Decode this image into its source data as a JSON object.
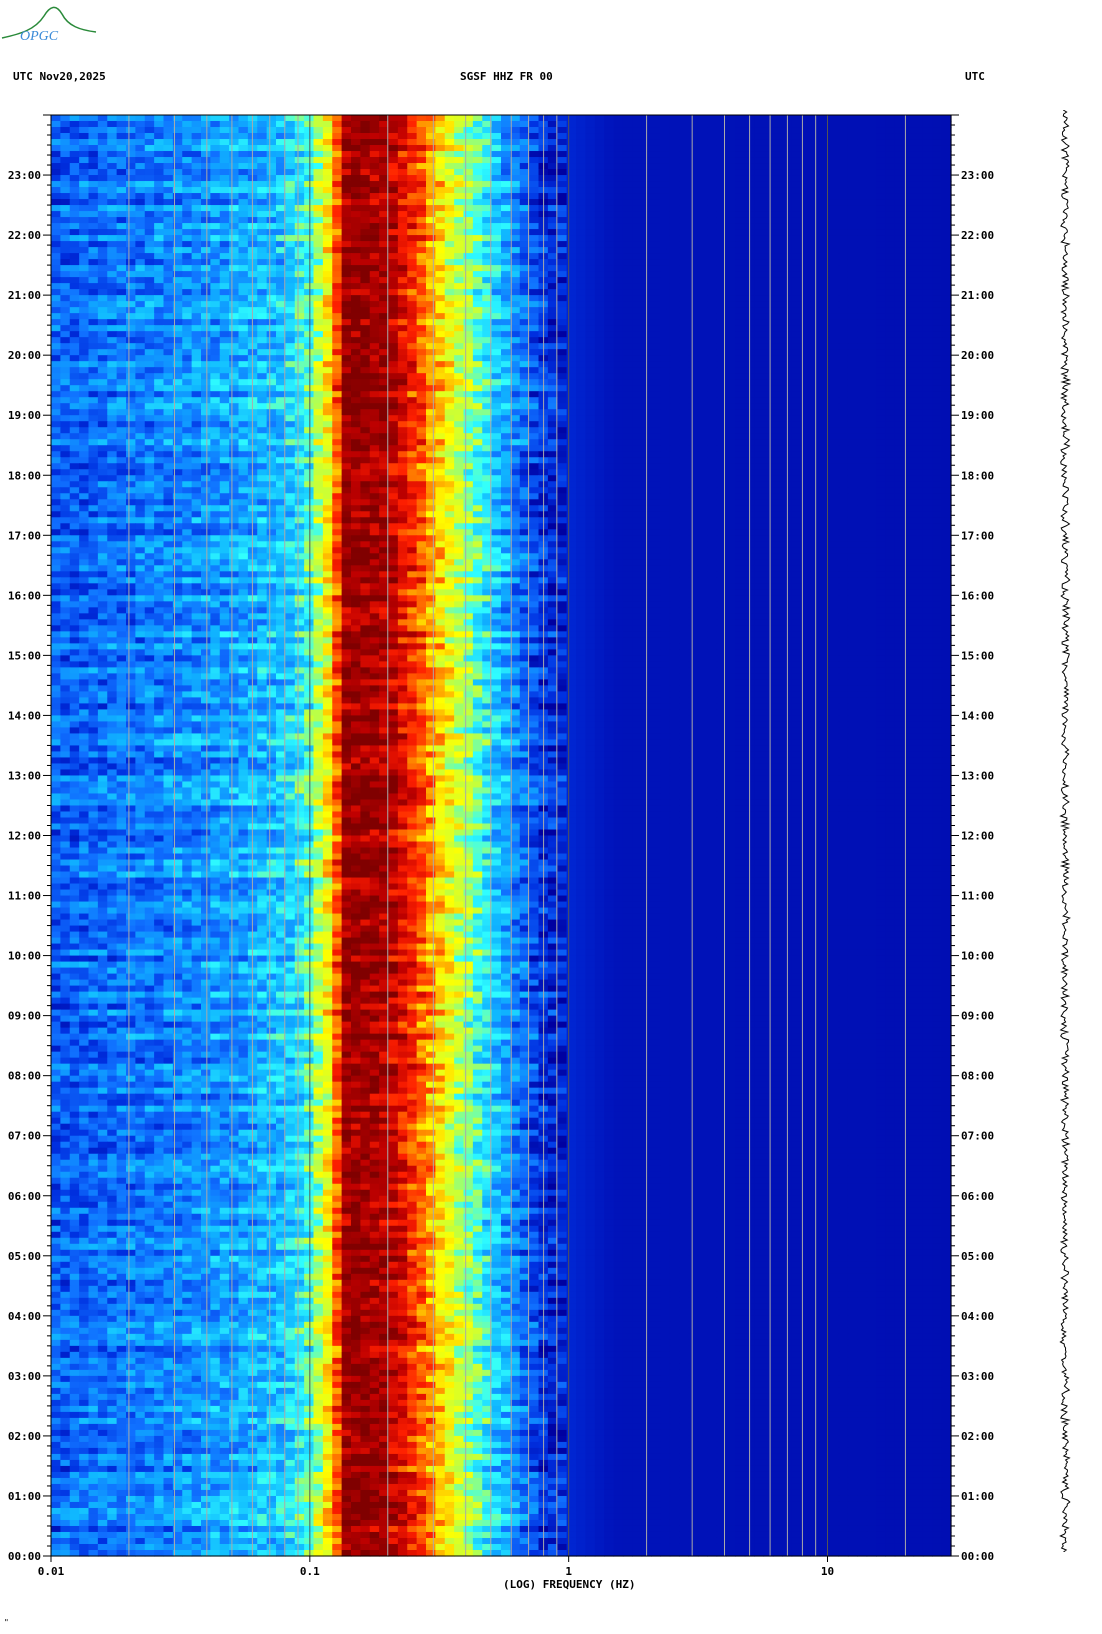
{
  "header": {
    "left": "UTC  Nov20,2025",
    "center": "SGSF HHZ FR 00",
    "right": "UTC"
  },
  "logo": {
    "text": "OPGC",
    "color": "#2a8a3a"
  },
  "corner_mark": "\"",
  "colors": {
    "background": "#0000a8",
    "low_noise": "#1a3ff0",
    "ramp": [
      "#0000a0",
      "#0030e0",
      "#1070ff",
      "#10b8ff",
      "#30ffff",
      "#c0ff40",
      "#ffff00",
      "#ff9000",
      "#ff2000",
      "#c00000",
      "#800000"
    ],
    "grid": "#aaaaaa"
  },
  "chart_data": {
    "type": "heatmap",
    "title": "SGSF HHZ FR 00",
    "date": "Nov20,2025",
    "timezone": "UTC",
    "xlabel": "(LOG) FREQUENCY (HZ)",
    "x_scale": "log",
    "xlim": [
      0.01,
      30
    ],
    "x_ticks": [
      {
        "value": 0.01,
        "label": "0.01"
      },
      {
        "value": 0.1,
        "label": "0.1"
      },
      {
        "value": 1,
        "label": "1"
      },
      {
        "value": 10,
        "label": "10"
      }
    ],
    "y_unit": "hours UTC",
    "ylim": [
      0,
      24
    ],
    "y_ticks": [
      {
        "value": 0,
        "label": "00:00"
      },
      {
        "value": 1,
        "label": "01:00"
      },
      {
        "value": 2,
        "label": "02:00"
      },
      {
        "value": 3,
        "label": "03:00"
      },
      {
        "value": 4,
        "label": "04:00"
      },
      {
        "value": 5,
        "label": "05:00"
      },
      {
        "value": 6,
        "label": "06:00"
      },
      {
        "value": 7,
        "label": "07:00"
      },
      {
        "value": 8,
        "label": "08:00"
      },
      {
        "value": 9,
        "label": "09:00"
      },
      {
        "value": 10,
        "label": "10:00"
      },
      {
        "value": 11,
        "label": "11:00"
      },
      {
        "value": 12,
        "label": "12:00"
      },
      {
        "value": 13,
        "label": "13:00"
      },
      {
        "value": 14,
        "label": "14:00"
      },
      {
        "value": 15,
        "label": "15:00"
      },
      {
        "value": 16,
        "label": "16:00"
      },
      {
        "value": 17,
        "label": "17:00"
      },
      {
        "value": 18,
        "label": "18:00"
      },
      {
        "value": 19,
        "label": "19:00"
      },
      {
        "value": 20,
        "label": "20:00"
      },
      {
        "value": 21,
        "label": "21:00"
      },
      {
        "value": 22,
        "label": "22:00"
      },
      {
        "value": 23,
        "label": "23:00"
      }
    ],
    "grid": true,
    "spectral_profile": [
      {
        "freq": 0.01,
        "level": 0.17
      },
      {
        "freq": 0.025,
        "level": 0.22
      },
      {
        "freq": 0.05,
        "level": 0.27
      },
      {
        "freq": 0.08,
        "level": 0.32
      },
      {
        "freq": 0.1,
        "level": 0.42
      },
      {
        "freq": 0.12,
        "level": 0.62
      },
      {
        "freq": 0.14,
        "level": 0.98
      },
      {
        "freq": 0.2,
        "level": 0.93
      },
      {
        "freq": 0.26,
        "level": 0.78
      },
      {
        "freq": 0.33,
        "level": 0.6
      },
      {
        "freq": 0.45,
        "level": 0.42
      },
      {
        "freq": 0.6,
        "level": 0.25
      },
      {
        "freq": 0.8,
        "level": 0.1
      },
      {
        "freq": 1.5,
        "level": 0.04
      },
      {
        "freq": 30,
        "level": 0.03
      }
    ]
  }
}
